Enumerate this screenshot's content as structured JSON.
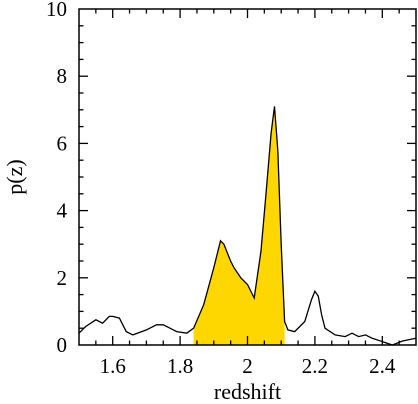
{
  "chart_data": {
    "type": "area",
    "title": "",
    "xlabel": "redshift",
    "ylabel": "p(z)",
    "xlim": [
      1.5,
      2.5
    ],
    "ylim": [
      0,
      10
    ],
    "x_ticks": [
      1.6,
      1.8,
      2.0,
      2.2,
      2.4
    ],
    "x_tick_labels": [
      "1.6",
      "1.8",
      "2",
      "2.2",
      "2.4"
    ],
    "y_ticks": [
      0,
      2,
      4,
      6,
      8,
      10
    ],
    "y_tick_labels": [
      "0",
      "2",
      "4",
      "6",
      "8",
      "10"
    ],
    "grid": false,
    "series": [
      {
        "line_color": "#000000",
        "x": [
          1.5,
          1.52,
          1.55,
          1.57,
          1.59,
          1.6,
          1.62,
          1.64,
          1.66,
          1.7,
          1.73,
          1.75,
          1.77,
          1.79,
          1.82,
          1.84,
          1.87,
          1.9,
          1.92,
          1.93,
          1.95,
          1.96,
          1.98,
          2.0,
          2.02,
          2.04,
          2.055,
          2.07,
          2.08,
          2.09,
          2.1,
          2.11,
          2.12,
          2.14,
          2.17,
          2.19,
          2.2,
          2.21,
          2.22,
          2.23,
          2.26,
          2.29,
          2.31,
          2.33,
          2.35,
          2.37,
          2.4,
          2.43,
          2.46,
          2.5
        ],
        "y": [
          0.35,
          0.55,
          0.75,
          0.65,
          0.85,
          0.85,
          0.8,
          0.4,
          0.3,
          0.45,
          0.6,
          0.6,
          0.5,
          0.4,
          0.35,
          0.5,
          1.2,
          2.3,
          3.1,
          3.0,
          2.5,
          2.3,
          2.0,
          1.8,
          1.4,
          2.8,
          4.5,
          6.3,
          7.1,
          5.8,
          3.0,
          0.7,
          0.45,
          0.4,
          0.7,
          1.35,
          1.6,
          1.45,
          0.9,
          0.5,
          0.3,
          0.25,
          0.35,
          0.25,
          0.3,
          0.2,
          0.1,
          0.0,
          0.12,
          0.2
        ]
      }
    ],
    "shaded_region": {
      "x_from": 1.84,
      "x_to": 2.11,
      "fill_color": "#ffd700"
    }
  }
}
